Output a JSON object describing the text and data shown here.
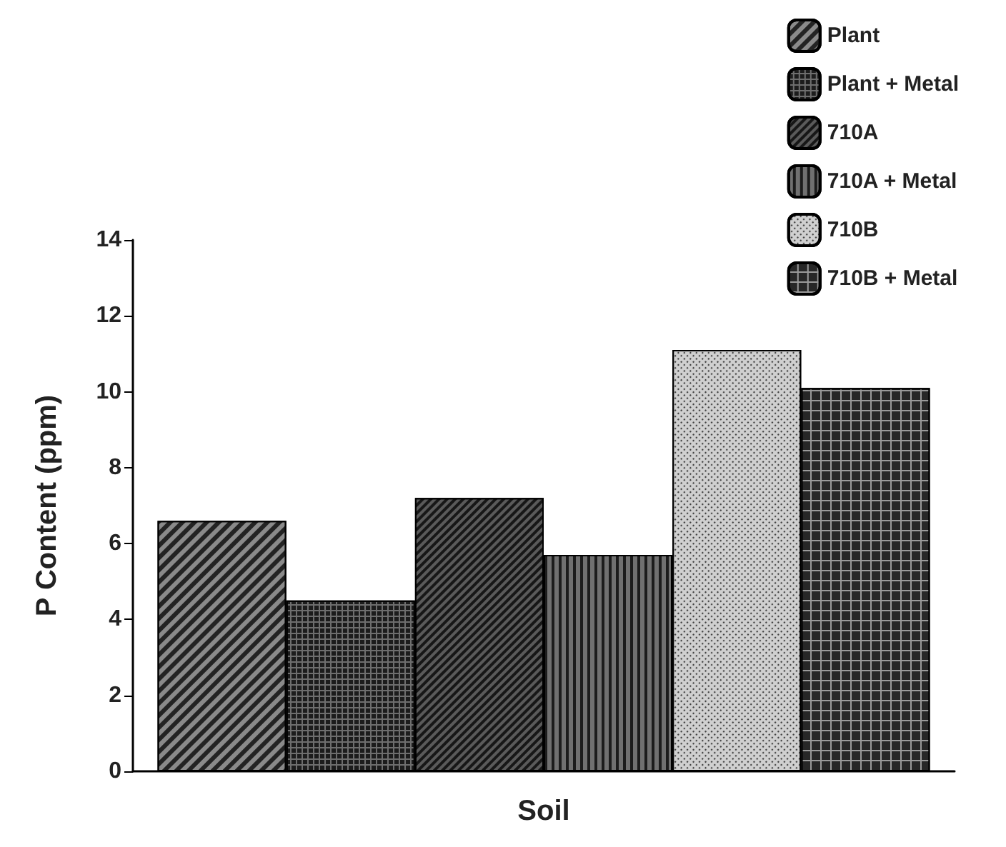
{
  "chart_data": {
    "type": "bar",
    "xlabel": "Soil",
    "ylabel": "P Content (ppm)",
    "categories": [
      null
    ],
    "series": [
      {
        "name": "Plant",
        "color": "#8a8a8a",
        "values": [
          6.6
        ]
      },
      {
        "name": "Plant + Metal",
        "color": "#6e6e6e",
        "values": [
          4.5
        ]
      },
      {
        "name": "710A",
        "color": "#5a5a5a",
        "values": [
          7.2
        ]
      },
      {
        "name": "710A + Metal",
        "color": "#707070",
        "values": [
          5.7
        ]
      },
      {
        "name": "710B",
        "color": "#d0d0d0",
        "values": [
          11.1
        ]
      },
      {
        "name": "710B + Metal",
        "color": "#9a9a9a",
        "values": [
          10.1
        ]
      }
    ],
    "ylim": [
      0,
      14
    ],
    "yticks": [
      0,
      2,
      4,
      6,
      8,
      10,
      12,
      14
    ],
    "grid": false,
    "legend": "top right"
  }
}
